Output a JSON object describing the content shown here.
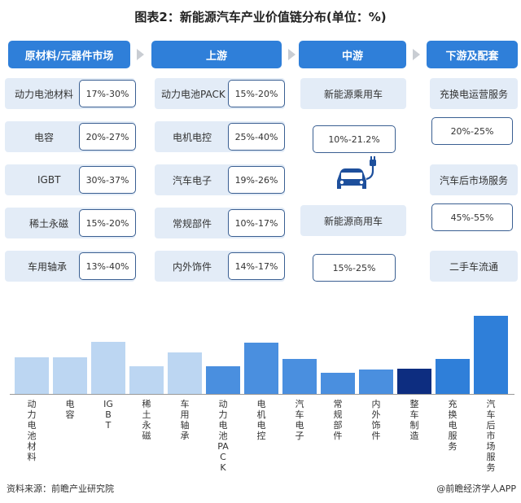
{
  "title": "图表2：新能源汽车产业价值链分布(单位：%)",
  "columns": {
    "c1": "原材料/元器件市场",
    "c2": "上游",
    "c3": "中游",
    "c4": "下游及配套"
  },
  "raw": [
    {
      "name": "动力电池材料",
      "pct": "17%-30%"
    },
    {
      "name": "电容",
      "pct": "20%-27%"
    },
    {
      "name": "IGBT",
      "pct": "30%-37%"
    },
    {
      "name": "稀土永磁",
      "pct": "15%-20%"
    },
    {
      "name": "车用轴承",
      "pct": "13%-40%"
    }
  ],
  "upstream": [
    {
      "name": "动力电池PACK",
      "pct": "15%-20%"
    },
    {
      "name": "电机电控",
      "pct": "25%-40%"
    },
    {
      "name": "汽车电子",
      "pct": "19%-26%"
    },
    {
      "name": "常规部件",
      "pct": "10%-17%"
    },
    {
      "name": "内外饰件",
      "pct": "14%-17%"
    }
  ],
  "midstream": {
    "passenger": "新能源乘用车",
    "passenger_pct": "10%-21.2%",
    "commercial": "新能源商用车",
    "commercial_pct": "15%-25%",
    "icon": "ev-charging-car-icon"
  },
  "downstream": [
    {
      "name": "充换电运营服务",
      "pct": "20%-25%"
    },
    {
      "name": "汽车后市场服务",
      "pct": "45%-55%"
    },
    {
      "name": "二手车流通",
      "pct": ""
    }
  ],
  "chart_data": {
    "type": "bar",
    "categories": [
      "动力电池材料",
      "电容",
      "IGBT",
      "稀土永磁",
      "车用轴承",
      "动力电池PACK",
      "电机电控",
      "汽车电子",
      "常规部件",
      "内外饰件",
      "整车制造",
      "充换电服务",
      "汽车后市场服务"
    ],
    "values": [
      23.5,
      23.5,
      33.5,
      17.5,
      26.5,
      17.5,
      32.5,
      22.5,
      13.5,
      15.5,
      16.0,
      22.5,
      50.0
    ],
    "bar_colors": [
      "#bcd6f2",
      "#bcd6f2",
      "#bcd6f2",
      "#bcd6f2",
      "#bcd6f2",
      "#4a8fdf",
      "#4a8fdf",
      "#4a8fdf",
      "#4a8fdf",
      "#4a8fdf",
      "#0d2d80",
      "#2f7fd9",
      "#2f7fd9"
    ],
    "title": "",
    "xlabel": "",
    "ylabel": "",
    "ylim": [
      0,
      52
    ]
  },
  "footer": {
    "source": "资料来源：前瞻产业研究院",
    "credit": "@前瞻经济学人APP"
  },
  "colors": {
    "header": "#2f7fd9",
    "label_bg": "#e3ecf7",
    "pct_border": "#3a5f92",
    "icon": "#1d4f9c"
  }
}
